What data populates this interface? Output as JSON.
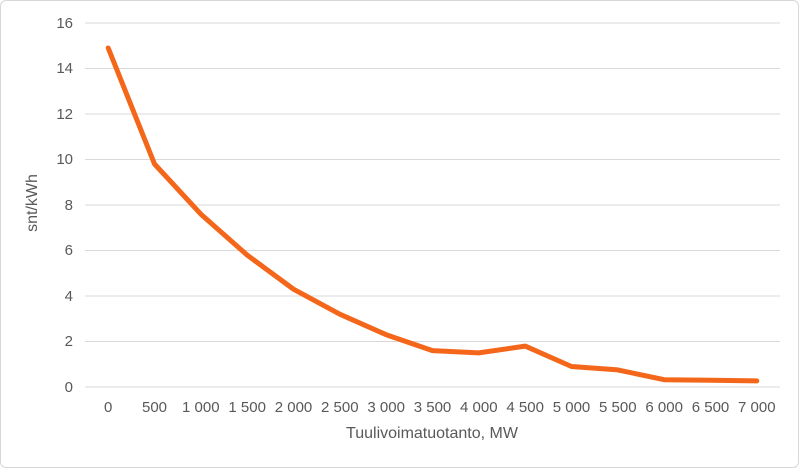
{
  "chart_data": {
    "type": "line",
    "title": "",
    "xlabel": "Tuulivoimatuotanto, MW",
    "ylabel": "snt/kWh",
    "categories": [
      0,
      500,
      1000,
      1500,
      2000,
      2500,
      3000,
      3500,
      4000,
      4500,
      5000,
      5500,
      6000,
      6500,
      7000
    ],
    "category_labels": [
      "0",
      "500",
      "1 000",
      "1 500",
      "2 000",
      "2 500",
      "3 000",
      "3 500",
      "4 000",
      "4 500",
      "5 000",
      "5 500",
      "6 000",
      "6 500",
      "7 000"
    ],
    "series": [
      {
        "name": "snt/kWh",
        "values": [
          14.9,
          9.8,
          7.6,
          5.8,
          4.3,
          3.2,
          2.3,
          1.6,
          1.5,
          1.8,
          0.9,
          0.75,
          0.32,
          0.3,
          0.27
        ]
      }
    ],
    "ylim": [
      0,
      16
    ],
    "ytick_step": 2,
    "ytick_labels": [
      "0",
      "2",
      "4",
      "6",
      "8",
      "10",
      "12",
      "14",
      "16"
    ],
    "grid": true,
    "legend": false
  },
  "colors": {
    "line": "#f4671a",
    "gridline": "#d9d9d9",
    "text": "#595959",
    "frame_border": "#d7d7d7",
    "background": "#ffffff"
  }
}
